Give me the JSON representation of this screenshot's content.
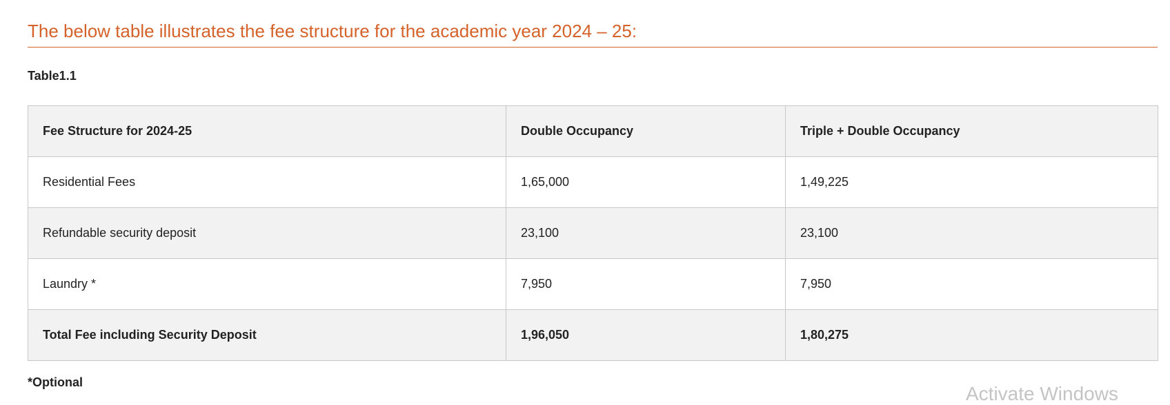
{
  "heading": "The below table illustrates the fee structure for the academic year 2024 – 25:",
  "table_label": "Table1.1",
  "table": {
    "headers": [
      "Fee Structure for 2024-25",
      "Double Occupancy",
      "Triple + Double Occupancy"
    ],
    "rows": [
      [
        "Residential Fees",
        "1,65,000",
        "1,49,225"
      ],
      [
        "Refundable security deposit",
        "23,100",
        "23,100"
      ],
      [
        "Laundry *",
        "7,950",
        "7,950"
      ]
    ],
    "total": [
      "Total Fee including Security Deposit",
      "1,96,050",
      "1,80,275"
    ]
  },
  "footnote": "*Optional",
  "watermark": "Activate Windows",
  "colors": {
    "accent": "#d4622a",
    "row_shade": "#f2f2f2",
    "border": "#c8c8c8"
  }
}
